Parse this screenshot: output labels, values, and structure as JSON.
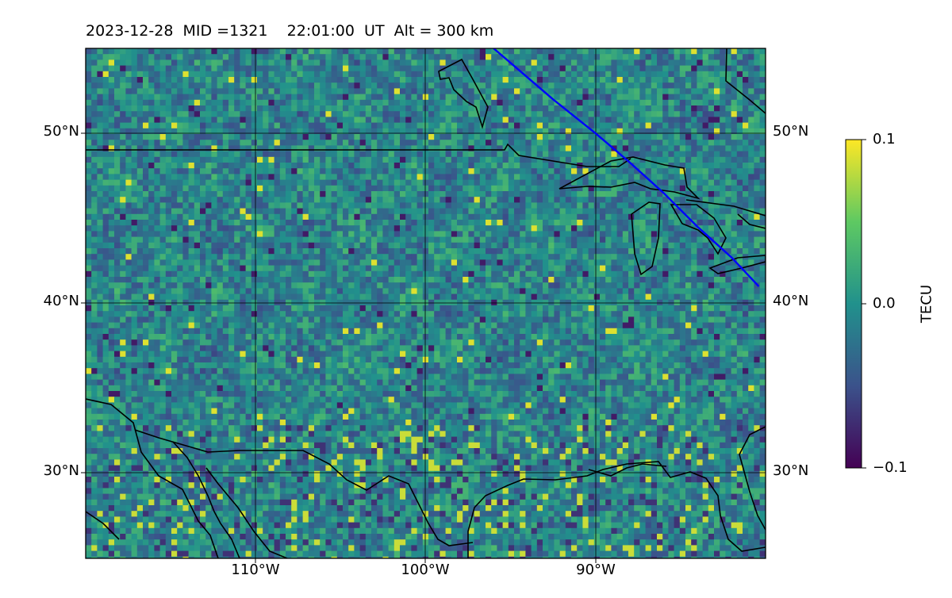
{
  "title": {
    "date": "2023-12-28",
    "mid": "MID =1321",
    "time": "22:01:00  UT",
    "alt": "Alt = 300 km"
  },
  "map": {
    "lon_range": [
      -120,
      -80
    ],
    "lat_range": [
      25,
      55
    ],
    "lat_ticks": [
      "50°N",
      "40°N",
      "30°N"
    ],
    "lon_ticks": [
      "110°W",
      "100°W",
      "90°W"
    ],
    "track_color": "#0000ff",
    "track_points": [
      [
        -96,
        55
      ],
      [
        -92.5,
        52
      ],
      [
        -90,
        50
      ],
      [
        -88,
        48.3
      ],
      [
        -86,
        46.5
      ],
      [
        -84,
        44.5
      ],
      [
        -82,
        42.7
      ],
      [
        -80.4,
        41
      ]
    ]
  },
  "colorbar": {
    "label": "TECU",
    "ticks": [
      "0.1",
      "0.0",
      "−0.1"
    ],
    "min": -0.1,
    "max": 0.1,
    "colormap": [
      "#440154",
      "#3b528b",
      "#21918c",
      "#5ec962",
      "#fde725"
    ]
  }
}
